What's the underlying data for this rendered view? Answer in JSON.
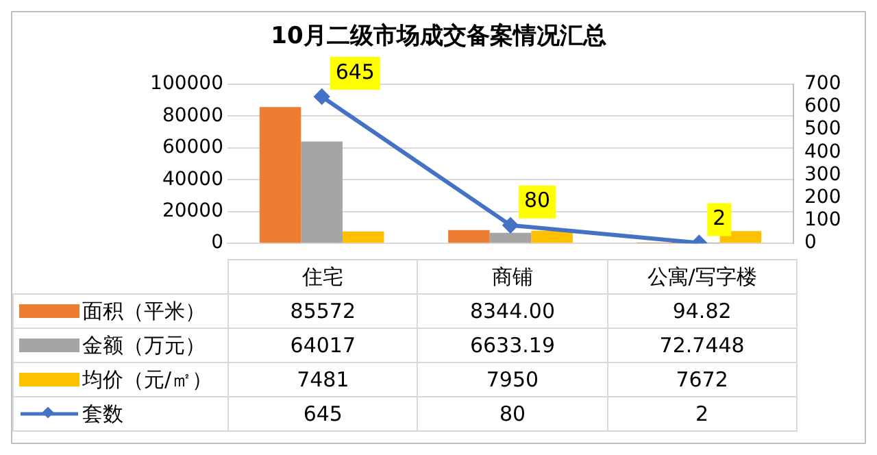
{
  "chart_data": {
    "type": "bar",
    "title": "10月二级市场成交备案情况汇总",
    "categories": [
      "住宅",
      "商铺",
      "公寓/写字楼"
    ],
    "series": [
      {
        "name": "面积（平米）",
        "color": "#ed7d31",
        "values": [
          85572,
          8344,
          94.82
        ],
        "value_labels": [
          "85572",
          "8344.00",
          "94.82"
        ]
      },
      {
        "name": "金额（万元）",
        "color": "#a5a5a5",
        "values": [
          64017,
          6633.19,
          72.7448
        ],
        "value_labels": [
          "64017",
          "6633.19",
          "72.7448"
        ]
      },
      {
        "name": "均价（元/㎡）",
        "color": "#ffc000",
        "values": [
          7481,
          7950,
          7672
        ],
        "value_labels": [
          "7481",
          "7950",
          "7672"
        ]
      },
      {
        "name": "套数",
        "type": "line",
        "axis": "y2",
        "color": "#4472c4",
        "values": [
          645,
          80,
          2
        ],
        "value_labels": [
          "645",
          "80",
          "2"
        ],
        "marker": "diamond",
        "line_style": "solid"
      }
    ],
    "ylim": [
      0,
      100000
    ],
    "yticks": [
      0,
      20000,
      40000,
      60000,
      80000,
      100000
    ],
    "y2lim": [
      0,
      700
    ],
    "y2ticks": [
      0,
      100,
      200,
      300,
      400,
      500,
      600,
      700
    ],
    "grid": "y",
    "legend": "bottom"
  }
}
